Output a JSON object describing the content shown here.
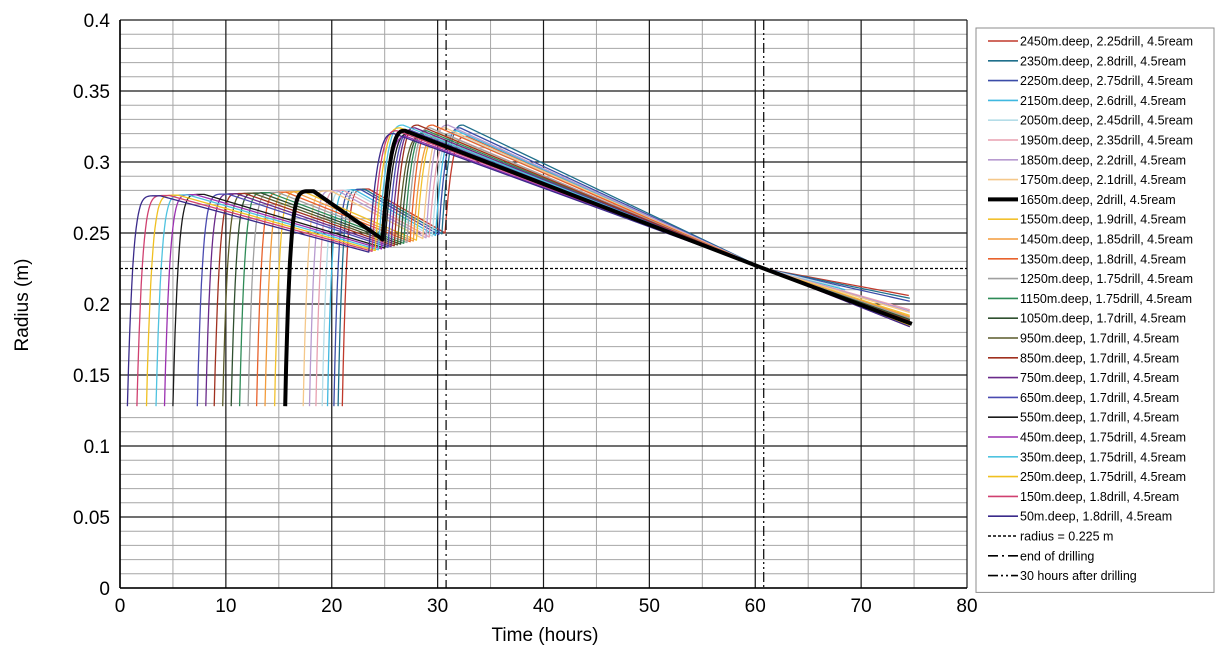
{
  "chart_data": {
    "type": "line",
    "xlabel": "Time (hours)",
    "ylabel": "Radius (m)",
    "xlim": [
      0,
      80
    ],
    "ylim": [
      0,
      0.4
    ],
    "x_ticks": [
      "0",
      "10",
      "20",
      "30",
      "40",
      "50",
      "60",
      "70",
      "80"
    ],
    "y_ticks": [
      "0",
      "0.05",
      "0.1",
      "0.15",
      "0.2",
      "0.25",
      "0.3",
      "0.35",
      "0.4"
    ],
    "grid": {
      "major": true,
      "minor": true,
      "major_x_step": 10,
      "minor_x_step": 5,
      "major_y_step": 0.05,
      "minor_y_step": 0.01
    },
    "legend_position": "right",
    "series": [
      {
        "name": "2450m.deep, 2.25drill, 4.5ream",
        "color": "#c0392b",
        "drill_start": 21.0,
        "drill_end": 30.7,
        "end_x": 74.5,
        "end_y": 0.206
      },
      {
        "name": "2350m.deep, 2.8drill, 4.5ream",
        "color": "#1f6f8b",
        "drill_start": 20.6,
        "drill_end": 30.4,
        "end_x": 74.6,
        "end_y": 0.204
      },
      {
        "name": "2250m.deep, 2.75drill, 4.5ream",
        "color": "#3b4ca8",
        "drill_start": 20.2,
        "drill_end": 30.1,
        "end_x": 74.6,
        "end_y": 0.202
      },
      {
        "name": "2150m.deep, 2.6drill, 4.5ream",
        "color": "#3fb8e0",
        "drill_start": 19.6,
        "drill_end": 29.8,
        "end_x": 68.5,
        "end_y": 0.21
      },
      {
        "name": "2050m.deep, 2.45drill, 4.5ream",
        "color": "#b5dde8",
        "drill_start": 19.1,
        "drill_end": 29.5,
        "end_x": 68.0,
        "end_y": 0.212
      },
      {
        "name": "1950m.deep, 2.35drill, 4.5ream",
        "color": "#e8a0b0",
        "drill_start": 18.5,
        "drill_end": 29.2,
        "end_x": 74.6,
        "end_y": 0.196
      },
      {
        "name": "1850m.deep, 2.2drill, 4.5ream",
        "color": "#b89bd0",
        "drill_start": 17.9,
        "drill_end": 28.9,
        "end_x": 74.6,
        "end_y": 0.195
      },
      {
        "name": "1750m.deep, 2.1drill, 4.5ream",
        "color": "#f5c88a",
        "drill_start": 17.3,
        "drill_end": 28.6,
        "end_x": 74.6,
        "end_y": 0.194
      },
      {
        "name": "1650m.deep, 2drill, 4.5ream",
        "color": "#000000",
        "bold": true,
        "drill_start": 15.6,
        "drill_end": 24.8,
        "end_x": 74.8,
        "end_y": 0.186
      },
      {
        "name": "1550m.deep, 1.9drill, 4.5ream",
        "color": "#f2c12e",
        "drill_start": 14.6,
        "drill_end": 28.0,
        "end_x": 74.6,
        "end_y": 0.192
      },
      {
        "name": "1450m.deep, 1.85drill, 4.5ream",
        "color": "#f39c3c",
        "drill_start": 13.7,
        "drill_end": 27.7,
        "end_x": 74.6,
        "end_y": 0.191
      },
      {
        "name": "1350m.deep, 1.8drill, 4.5ream",
        "color": "#e8622c",
        "drill_start": 12.9,
        "drill_end": 27.4,
        "end_x": 74.6,
        "end_y": 0.19
      },
      {
        "name": "1250m.deep, 1.75drill, 4.5ream",
        "color": "#a0a0a0",
        "drill_start": 12.1,
        "drill_end": 27.1,
        "end_x": 74.6,
        "end_y": 0.19
      },
      {
        "name": "1150m.deep, 1.75drill, 4.5ream",
        "color": "#2e8b57",
        "drill_start": 11.3,
        "drill_end": 26.8,
        "end_x": 74.6,
        "end_y": 0.189
      },
      {
        "name": "1050m.deep, 1.7drill, 4.5ream",
        "color": "#2f4f2f",
        "drill_start": 10.5,
        "drill_end": 26.5,
        "end_x": 74.6,
        "end_y": 0.189
      },
      {
        "name": "950m.deep, 1.7drill, 4.5ream",
        "color": "#5a5a2a",
        "drill_start": 9.7,
        "drill_end": 26.2,
        "end_x": 74.6,
        "end_y": 0.188
      },
      {
        "name": "850m.deep, 1.7drill, 4.5ream",
        "color": "#a0301f",
        "drill_start": 8.9,
        "drill_end": 25.9,
        "end_x": 74.6,
        "end_y": 0.188
      },
      {
        "name": "750m.deep, 1.7drill, 4.5ream",
        "color": "#6a2a8a",
        "drill_start": 8.1,
        "drill_end": 25.6,
        "end_x": 74.6,
        "end_y": 0.187
      },
      {
        "name": "650m.deep, 1.7drill, 4.5ream",
        "color": "#4a4ab0",
        "drill_start": 7.3,
        "drill_end": 25.3,
        "end_x": 74.6,
        "end_y": 0.187
      },
      {
        "name": "550m.deep, 1.7drill, 4.5ream",
        "color": "#1a1a1a",
        "drill_start": 5.0,
        "drill_end": 25.0,
        "end_x": 74.6,
        "end_y": 0.186
      },
      {
        "name": "450m.deep, 1.75drill, 4.5ream",
        "color": "#9b30b0",
        "drill_start": 4.2,
        "drill_end": 24.7,
        "end_x": 74.6,
        "end_y": 0.186
      },
      {
        "name": "350m.deep, 1.75drill, 4.5ream",
        "color": "#4fc3e0",
        "drill_start": 3.4,
        "drill_end": 24.4,
        "end_x": 74.6,
        "end_y": 0.185
      },
      {
        "name": "250m.deep, 1.75drill, 4.5ream",
        "color": "#f0c020",
        "drill_start": 2.5,
        "drill_end": 24.1,
        "end_x": 74.6,
        "end_y": 0.185
      },
      {
        "name": "150m.deep, 1.8drill, 4.5ream",
        "color": "#d04070",
        "drill_start": 1.6,
        "drill_end": 23.8,
        "end_x": 74.6,
        "end_y": 0.184
      },
      {
        "name": "50m.deep, 1.8drill, 4.5ream",
        "color": "#3a2a8a",
        "drill_start": 0.7,
        "drill_end": 23.5,
        "end_x": 74.6,
        "end_y": 0.184
      }
    ],
    "reference_lines": [
      {
        "name": "radius = 0.225 m",
        "orientation": "horizontal",
        "value": 0.225,
        "style": "dotted"
      },
      {
        "name": "end of drilling",
        "orientation": "vertical",
        "value": 30.8,
        "style": "dashdot"
      },
      {
        "name": "30 hours after drilling",
        "orientation": "vertical",
        "value": 60.8,
        "style": "dashdotdot"
      }
    ]
  }
}
